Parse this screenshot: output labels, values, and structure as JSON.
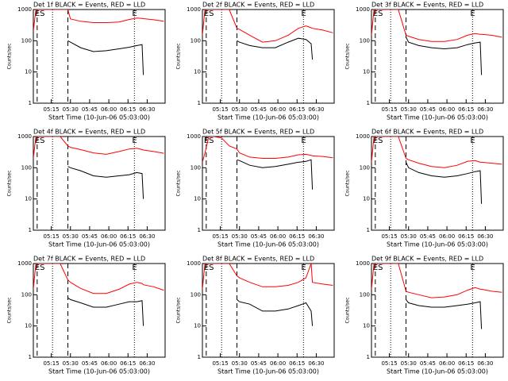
{
  "chart_data": [
    {
      "type": "line",
      "title": "Det 1f BLACK = Events, RED = LLD",
      "xlabel": "Start Time (10-Jun-06 05:03:00)",
      "ylabel": "Counts/sec",
      "log_y": true,
      "ylim": [
        1,
        1000
      ],
      "yticks": [
        1,
        10,
        100,
        1000
      ],
      "xlim": [
        1,
        104
      ],
      "xticks": [
        {
          "value": 15,
          "label": "05:15"
        },
        {
          "value": 30,
          "label": "05:30"
        },
        {
          "value": 45,
          "label": "05:45"
        },
        {
          "value": 60,
          "label": "06:00"
        },
        {
          "value": 75,
          "label": "06:15"
        },
        {
          "value": 90,
          "label": "06:30"
        }
      ],
      "vlines": [
        {
          "x": 4,
          "dash": "dashed"
        },
        {
          "x": 16,
          "dash": "dotted"
        },
        {
          "x": 28,
          "dash": "dashed"
        },
        {
          "x": 80,
          "dash": "dotted"
        }
      ],
      "annotations": [
        "ES",
        "E"
      ],
      "x": [
        1,
        3,
        6,
        10,
        16,
        22,
        28,
        30,
        38,
        48,
        58,
        68,
        76,
        82,
        86,
        87,
        95,
        103
      ],
      "series": [
        {
          "color": "#ff0000",
          "values": [
            200,
            1000,
            1000,
            1000,
            1000,
            1000,
            1000,
            500,
            420,
            380,
            380,
            400,
            480,
            530,
            520,
            510,
            470,
            420
          ]
        },
        {
          "color": "#000000",
          "values": [
            null,
            null,
            null,
            null,
            null,
            null,
            100,
            90,
            60,
            45,
            48,
            55,
            62,
            70,
            75,
            8,
            null,
            null
          ]
        }
      ]
    },
    {
      "type": "line",
      "title": "Det 2f BLACK = Events, RED = LLD",
      "xlabel": "Start Time (10-Jun-06 05:03:00)",
      "ylabel": "Counts/sec",
      "log_y": true,
      "ylim": [
        1,
        1000
      ],
      "yticks": [
        1,
        10,
        100,
        1000
      ],
      "xlim": [
        1,
        104
      ],
      "xticks": [
        {
          "value": 15,
          "label": "05:15"
        },
        {
          "value": 30,
          "label": "05:30"
        },
        {
          "value": 45,
          "label": "05:45"
        },
        {
          "value": 60,
          "label": "06:00"
        },
        {
          "value": 75,
          "label": "06:15"
        },
        {
          "value": 90,
          "label": "06:30"
        }
      ],
      "vlines": [
        {
          "x": 4,
          "dash": "dashed"
        },
        {
          "x": 16,
          "dash": "dotted"
        },
        {
          "x": 28,
          "dash": "dashed"
        },
        {
          "x": 80,
          "dash": "dotted"
        }
      ],
      "annotations": [
        "ES",
        "E"
      ],
      "x": [
        1,
        3,
        6,
        10,
        16,
        22,
        28,
        30,
        38,
        48,
        58,
        68,
        76,
        82,
        86,
        87,
        95,
        103
      ],
      "series": [
        {
          "color": "#ff0000",
          "values": [
            150,
            1000,
            1000,
            1000,
            1000,
            1000,
            250,
            230,
            150,
            90,
            100,
            150,
            250,
            300,
            260,
            250,
            220,
            180
          ]
        },
        {
          "color": "#000000",
          "values": [
            null,
            null,
            null,
            null,
            null,
            null,
            100,
            90,
            70,
            60,
            60,
            90,
            120,
            110,
            80,
            25,
            null,
            null
          ]
        }
      ]
    },
    {
      "type": "line",
      "title": "Det 3f BLACK = Events, RED = LLD",
      "xlabel": "Start Time (10-Jun-06 05:03:00)",
      "ylabel": "Counts/sec",
      "log_y": true,
      "ylim": [
        1,
        1000
      ],
      "yticks": [
        1,
        10,
        100,
        1000
      ],
      "xlim": [
        1,
        104
      ],
      "xticks": [
        {
          "value": 15,
          "label": "05:15"
        },
        {
          "value": 30,
          "label": "05:30"
        },
        {
          "value": 45,
          "label": "05:45"
        },
        {
          "value": 60,
          "label": "06:00"
        },
        {
          "value": 75,
          "label": "06:15"
        },
        {
          "value": 90,
          "label": "06:30"
        }
      ],
      "vlines": [
        {
          "x": 4,
          "dash": "dashed"
        },
        {
          "x": 16,
          "dash": "dotted"
        },
        {
          "x": 28,
          "dash": "dashed"
        },
        {
          "x": 80,
          "dash": "dotted"
        }
      ],
      "annotations": [
        "ES",
        "E"
      ],
      "x": [
        1,
        3,
        6,
        10,
        16,
        22,
        28,
        30,
        38,
        48,
        58,
        68,
        76,
        82,
        86,
        87,
        95,
        103
      ],
      "series": [
        {
          "color": "#ff0000",
          "values": [
            150,
            1000,
            1000,
            1000,
            1000,
            1000,
            150,
            140,
            110,
            95,
            95,
            110,
            150,
            170,
            160,
            160,
            150,
            130
          ]
        },
        {
          "color": "#000000",
          "values": [
            null,
            null,
            null,
            null,
            null,
            null,
            130,
            90,
            70,
            60,
            55,
            60,
            75,
            85,
            90,
            8,
            null,
            null
          ]
        }
      ]
    },
    {
      "type": "line",
      "title": "Det 4f BLACK = Events, RED = LLD",
      "xlabel": "Start Time (10-Jun-06 05:03:00)",
      "ylabel": "Counts/sec",
      "log_y": true,
      "ylim": [
        1,
        1000
      ],
      "yticks": [
        1,
        10,
        100,
        1000
      ],
      "xlim": [
        1,
        104
      ],
      "xticks": [
        {
          "value": 15,
          "label": "05:15"
        },
        {
          "value": 30,
          "label": "05:30"
        },
        {
          "value": 45,
          "label": "05:45"
        },
        {
          "value": 60,
          "label": "06:00"
        },
        {
          "value": 75,
          "label": "06:15"
        },
        {
          "value": 90,
          "label": "06:30"
        }
      ],
      "vlines": [
        {
          "x": 4,
          "dash": "dashed"
        },
        {
          "x": 16,
          "dash": "dotted"
        },
        {
          "x": 28,
          "dash": "dashed"
        },
        {
          "x": 80,
          "dash": "dotted"
        }
      ],
      "annotations": [
        "ES",
        "E"
      ],
      "x": [
        1,
        3,
        6,
        10,
        16,
        22,
        28,
        30,
        38,
        48,
        58,
        68,
        76,
        82,
        86,
        87,
        95,
        103
      ],
      "series": [
        {
          "color": "#ff0000",
          "values": [
            200,
            1000,
            1000,
            1000,
            1000,
            1000,
            500,
            450,
            380,
            300,
            270,
            330,
            400,
            420,
            380,
            370,
            330,
            290
          ]
        },
        {
          "color": "#000000",
          "values": [
            null,
            null,
            null,
            null,
            null,
            null,
            110,
            100,
            80,
            55,
            50,
            55,
            60,
            70,
            65,
            10,
            null,
            null
          ]
        }
      ]
    },
    {
      "type": "line",
      "title": "Det 5f BLACK = Events, RED = LLD",
      "xlabel": "Start Time (10-Jun-06 05:03:00)",
      "ylabel": "Counts/sec",
      "log_y": true,
      "ylim": [
        1,
        1000
      ],
      "yticks": [
        1,
        10,
        100,
        1000
      ],
      "xlim": [
        1,
        104
      ],
      "xticks": [
        {
          "value": 15,
          "label": "05:15"
        },
        {
          "value": 30,
          "label": "05:30"
        },
        {
          "value": 45,
          "label": "05:45"
        },
        {
          "value": 60,
          "label": "06:00"
        },
        {
          "value": 75,
          "label": "06:15"
        },
        {
          "value": 90,
          "label": "06:30"
        }
      ],
      "vlines": [
        {
          "x": 4,
          "dash": "dashed"
        },
        {
          "x": 16,
          "dash": "dotted"
        },
        {
          "x": 28,
          "dash": "dashed"
        },
        {
          "x": 80,
          "dash": "dotted"
        }
      ],
      "annotations": [
        "ES",
        "E"
      ],
      "x": [
        1,
        3,
        6,
        10,
        16,
        22,
        28,
        30,
        38,
        48,
        58,
        68,
        76,
        82,
        86,
        87,
        95,
        103
      ],
      "series": [
        {
          "color": "#ff0000",
          "values": [
            150,
            300,
            1000,
            1000,
            900,
            500,
            400,
            300,
            220,
            200,
            200,
            220,
            260,
            270,
            250,
            240,
            230,
            210
          ]
        },
        {
          "color": "#000000",
          "values": [
            null,
            null,
            null,
            null,
            null,
            null,
            180,
            170,
            120,
            100,
            110,
            130,
            150,
            160,
            180,
            20,
            null,
            null
          ]
        }
      ]
    },
    {
      "type": "line",
      "title": "Det 6f BLACK = Events, RED = LLD",
      "xlabel": "Start Time (10-Jun-06 05:03:00)",
      "ylabel": "Counts/sec",
      "log_y": true,
      "ylim": [
        1,
        1000
      ],
      "yticks": [
        1,
        10,
        100,
        1000
      ],
      "xlim": [
        1,
        104
      ],
      "xticks": [
        {
          "value": 15,
          "label": "05:15"
        },
        {
          "value": 30,
          "label": "05:30"
        },
        {
          "value": 45,
          "label": "05:45"
        },
        {
          "value": 60,
          "label": "06:00"
        },
        {
          "value": 75,
          "label": "06:15"
        },
        {
          "value": 90,
          "label": "06:30"
        }
      ],
      "vlines": [
        {
          "x": 4,
          "dash": "dashed"
        },
        {
          "x": 16,
          "dash": "dotted"
        },
        {
          "x": 28,
          "dash": "dashed"
        },
        {
          "x": 80,
          "dash": "dotted"
        }
      ],
      "annotations": [
        "ES",
        "E"
      ],
      "x": [
        1,
        3,
        6,
        10,
        16,
        22,
        28,
        30,
        38,
        48,
        58,
        68,
        76,
        82,
        86,
        87,
        95,
        103
      ],
      "series": [
        {
          "color": "#ff0000",
          "values": [
            150,
            1000,
            1000,
            1000,
            1000,
            1000,
            200,
            180,
            140,
            110,
            100,
            120,
            160,
            170,
            150,
            150,
            140,
            130
          ]
        },
        {
          "color": "#000000",
          "values": [
            null,
            null,
            null,
            null,
            null,
            null,
            150,
            100,
            70,
            55,
            50,
            55,
            65,
            75,
            80,
            7,
            null,
            null
          ]
        }
      ]
    },
    {
      "type": "line",
      "title": "Det 7f BLACK = Events, RED = LLD",
      "xlabel": "Start Time (10-Jun-06 05:03:00)",
      "ylabel": "Counts/sec",
      "log_y": true,
      "ylim": [
        1,
        1000
      ],
      "yticks": [
        1,
        10,
        100,
        1000
      ],
      "xlim": [
        1,
        104
      ],
      "xticks": [
        {
          "value": 15,
          "label": "05:15"
        },
        {
          "value": 30,
          "label": "05:30"
        },
        {
          "value": 45,
          "label": "05:45"
        },
        {
          "value": 60,
          "label": "06:00"
        },
        {
          "value": 75,
          "label": "06:15"
        },
        {
          "value": 90,
          "label": "06:30"
        }
      ],
      "vlines": [
        {
          "x": 4,
          "dash": "dashed"
        },
        {
          "x": 16,
          "dash": "dotted"
        },
        {
          "x": 28,
          "dash": "dashed"
        },
        {
          "x": 80,
          "dash": "dotted"
        }
      ],
      "annotations": [
        "ES",
        "E"
      ],
      "x": [
        1,
        3,
        6,
        10,
        16,
        22,
        28,
        30,
        38,
        48,
        58,
        68,
        76,
        82,
        86,
        87,
        95,
        103
      ],
      "series": [
        {
          "color": "#ff0000",
          "values": [
            150,
            1000,
            1000,
            1000,
            1000,
            1000,
            300,
            250,
            160,
            110,
            110,
            150,
            220,
            250,
            230,
            210,
            180,
            140
          ]
        },
        {
          "color": "#000000",
          "values": [
            null,
            null,
            null,
            null,
            null,
            null,
            80,
            70,
            55,
            40,
            40,
            50,
            60,
            60,
            65,
            10,
            null,
            null
          ]
        }
      ]
    },
    {
      "type": "line",
      "title": "Det 8f BLACK = Events, RED = LLD",
      "xlabel": "Start Time (10-Jun-06 05:03:00)",
      "ylabel": "Counts/sec",
      "log_y": true,
      "ylim": [
        1,
        1000
      ],
      "yticks": [
        1,
        10,
        100,
        1000
      ],
      "xlim": [
        1,
        104
      ],
      "xticks": [
        {
          "value": 15,
          "label": "05:15"
        },
        {
          "value": 30,
          "label": "05:30"
        },
        {
          "value": 45,
          "label": "05:45"
        },
        {
          "value": 60,
          "label": "06:00"
        },
        {
          "value": 75,
          "label": "06:15"
        },
        {
          "value": 90,
          "label": "06:30"
        }
      ],
      "vlines": [
        {
          "x": 4,
          "dash": "dashed"
        },
        {
          "x": 16,
          "dash": "dotted"
        },
        {
          "x": 28,
          "dash": "dashed"
        },
        {
          "x": 80,
          "dash": "dotted"
        }
      ],
      "annotations": [
        "ES",
        "E"
      ],
      "x": [
        1,
        3,
        6,
        10,
        16,
        22,
        28,
        30,
        38,
        48,
        58,
        68,
        76,
        82,
        86,
        87,
        95,
        103
      ],
      "series": [
        {
          "color": "#ff0000",
          "values": [
            150,
            1000,
            1000,
            1000,
            1000,
            1000,
            400,
            350,
            250,
            180,
            180,
            200,
            250,
            350,
            1000,
            250,
            220,
            200
          ]
        },
        {
          "color": "#000000",
          "values": [
            null,
            null,
            null,
            null,
            null,
            null,
            70,
            60,
            50,
            30,
            30,
            35,
            45,
            55,
            30,
            10,
            null,
            null
          ]
        }
      ]
    },
    {
      "type": "line",
      "title": "Det 9f BLACK = Events, RED = LLD",
      "xlabel": "Start Time (10-Jun-06 05:03:00)",
      "ylabel": "Counts/sec",
      "log_y": true,
      "ylim": [
        1,
        1000
      ],
      "yticks": [
        1,
        10,
        100,
        1000
      ],
      "xlim": [
        1,
        104
      ],
      "xticks": [
        {
          "value": 15,
          "label": "05:15"
        },
        {
          "value": 30,
          "label": "05:30"
        },
        {
          "value": 45,
          "label": "05:45"
        },
        {
          "value": 60,
          "label": "06:00"
        },
        {
          "value": 75,
          "label": "06:15"
        },
        {
          "value": 90,
          "label": "06:30"
        }
      ],
      "vlines": [
        {
          "x": 4,
          "dash": "dashed"
        },
        {
          "x": 16,
          "dash": "dotted"
        },
        {
          "x": 28,
          "dash": "dashed"
        },
        {
          "x": 80,
          "dash": "dotted"
        }
      ],
      "annotations": [
        "ES",
        "E"
      ],
      "x": [
        1,
        3,
        6,
        10,
        16,
        22,
        28,
        30,
        38,
        48,
        58,
        68,
        76,
        82,
        86,
        87,
        95,
        103
      ],
      "series": [
        {
          "color": "#ff0000",
          "values": [
            150,
            1000,
            1000,
            1000,
            1000,
            1000,
            130,
            120,
            100,
            80,
            85,
            100,
            140,
            170,
            150,
            150,
            130,
            120
          ]
        },
        {
          "color": "#000000",
          "values": [
            null,
            null,
            null,
            null,
            null,
            null,
            70,
            55,
            45,
            40,
            40,
            45,
            50,
            55,
            60,
            8,
            null,
            null
          ]
        }
      ]
    }
  ]
}
